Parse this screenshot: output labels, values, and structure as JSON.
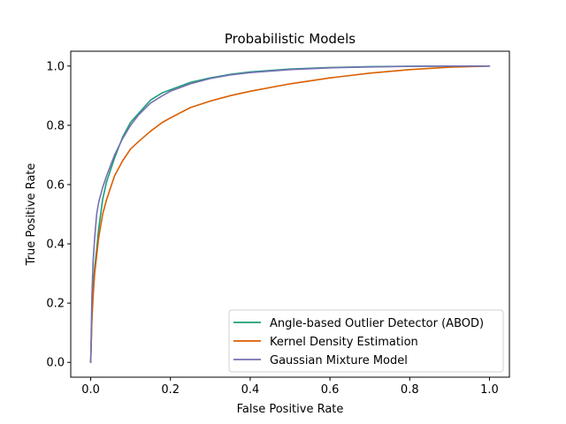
{
  "chart_data": {
    "type": "line",
    "title": "Probabilistic Models",
    "xlabel": "False Positive Rate",
    "ylabel": "True Positive Rate",
    "xlim": [
      -0.05,
      1.05
    ],
    "ylim": [
      -0.05,
      1.05
    ],
    "xticks": [
      0.0,
      0.2,
      0.4,
      0.6,
      0.8,
      1.0
    ],
    "yticks": [
      0.0,
      0.2,
      0.4,
      0.6,
      0.8,
      1.0
    ],
    "xtick_labels": [
      "0.0",
      "0.2",
      "0.4",
      "0.6",
      "0.8",
      "1.0"
    ],
    "ytick_labels": [
      "0.0",
      "0.2",
      "0.4",
      "0.6",
      "0.8",
      "1.0"
    ],
    "grid": false,
    "legend_position": "lower-right",
    "series": [
      {
        "name": "Angle-based Outlier Detector (ABOD)",
        "color": "#1b9e77",
        "x": [
          0.0,
          0.003,
          0.006,
          0.01,
          0.015,
          0.02,
          0.03,
          0.04,
          0.05,
          0.06,
          0.08,
          0.1,
          0.12,
          0.15,
          0.18,
          0.2,
          0.25,
          0.3,
          0.35,
          0.4,
          0.5,
          0.6,
          0.7,
          0.8,
          0.9,
          1.0
        ],
        "y": [
          0.0,
          0.15,
          0.25,
          0.32,
          0.38,
          0.45,
          0.55,
          0.61,
          0.65,
          0.69,
          0.76,
          0.81,
          0.84,
          0.885,
          0.91,
          0.92,
          0.945,
          0.96,
          0.972,
          0.98,
          0.99,
          0.995,
          0.998,
          0.999,
          1.0,
          1.0
        ]
      },
      {
        "name": "Kernel Density Estimation",
        "color": "#d95f02",
        "x": [
          0.0,
          0.003,
          0.006,
          0.01,
          0.015,
          0.02,
          0.03,
          0.04,
          0.05,
          0.06,
          0.08,
          0.1,
          0.12,
          0.15,
          0.18,
          0.2,
          0.25,
          0.3,
          0.35,
          0.4,
          0.5,
          0.6,
          0.7,
          0.8,
          0.9,
          1.0
        ],
        "y": [
          0.0,
          0.14,
          0.22,
          0.3,
          0.36,
          0.42,
          0.5,
          0.55,
          0.59,
          0.63,
          0.68,
          0.72,
          0.745,
          0.78,
          0.81,
          0.825,
          0.86,
          0.882,
          0.9,
          0.915,
          0.94,
          0.96,
          0.976,
          0.988,
          0.996,
          1.0
        ]
      },
      {
        "name": "Gaussian Mixture Model",
        "color": "#7570b3",
        "x": [
          0.0,
          0.003,
          0.006,
          0.01,
          0.015,
          0.02,
          0.03,
          0.04,
          0.05,
          0.06,
          0.08,
          0.1,
          0.12,
          0.15,
          0.18,
          0.2,
          0.25,
          0.3,
          0.35,
          0.4,
          0.5,
          0.6,
          0.7,
          0.8,
          0.9,
          1.0
        ],
        "y": [
          0.0,
          0.22,
          0.34,
          0.42,
          0.5,
          0.54,
          0.59,
          0.63,
          0.665,
          0.7,
          0.755,
          0.8,
          0.835,
          0.875,
          0.9,
          0.915,
          0.94,
          0.958,
          0.97,
          0.978,
          0.988,
          0.994,
          0.997,
          0.999,
          1.0,
          1.0
        ]
      }
    ]
  }
}
